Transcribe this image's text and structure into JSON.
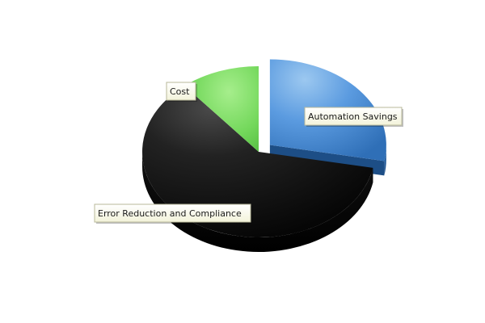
{
  "chart_data": {
    "type": "pie",
    "title": "",
    "slices": [
      {
        "label": "Automation Savings",
        "value": 28,
        "color": "#4a8fd3",
        "exploded": true
      },
      {
        "label": "Error Reduction and Compliance",
        "value": 61,
        "color": "#1c1c1c",
        "exploded": false
      },
      {
        "label": "Cost",
        "value": 11,
        "color": "#6fd45a",
        "exploded": false
      }
    ],
    "legend": "none",
    "style": "3d"
  }
}
